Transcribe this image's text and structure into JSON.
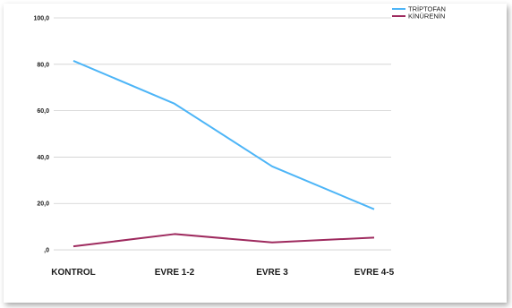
{
  "chart_data": {
    "type": "line",
    "categories": [
      "KONTROL",
      "EVRE 1-2",
      "EVRE 3",
      "EVRE 4-5"
    ],
    "series": [
      {
        "name": "TRİPTOFAN",
        "values": [
          81.5,
          63.0,
          36.0,
          17.5
        ],
        "color": "#4db5f7"
      },
      {
        "name": "KİNÜRENİN",
        "values": [
          1.5,
          6.8,
          3.2,
          5.3
        ],
        "color": "#9e2a5e"
      }
    ],
    "yticks": [
      "100,0",
      "80,0",
      "60,0",
      "40,0",
      "20,0",
      ",0"
    ],
    "ytick_values": [
      100,
      80,
      60,
      40,
      20,
      0
    ],
    "ylim": [
      -5,
      100
    ],
    "grid": true,
    "legend_position": "top-right",
    "title": "",
    "xlabel": "",
    "ylabel": ""
  }
}
